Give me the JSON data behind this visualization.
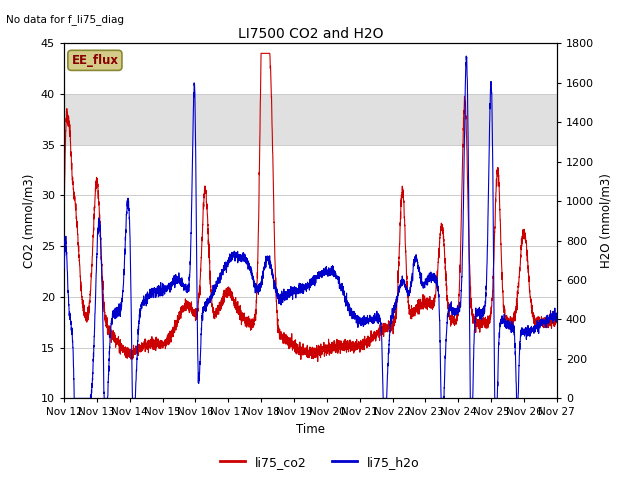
{
  "title": "LI7500 CO2 and H2O",
  "top_left_text": "No data for f_li75_diag",
  "xlabel": "Time",
  "ylabel_left": "CO2 (mmol/m3)",
  "ylabel_right": "H2O (mmol/m3)",
  "ylim_left": [
    10,
    45
  ],
  "ylim_right": [
    0,
    1800
  ],
  "shade_band": [
    35,
    40
  ],
  "xtick_labels": [
    "Nov 12",
    "Nov 13",
    "Nov 14",
    "Nov 15",
    "Nov 16",
    "Nov 17",
    "Nov 18",
    "Nov 19",
    "Nov 20",
    "Nov 21",
    "Nov 22",
    "Nov 23",
    "Nov 24",
    "Nov 25",
    "Nov 26",
    "Nov 27"
  ],
  "color_co2": "#cc0000",
  "color_h2o": "#0000cc",
  "legend_label_co2": "li75_co2",
  "legend_label_h2o": "li75_h2o",
  "ee_flux_box_facecolor": "#d4cc88",
  "ee_flux_box_edgecolor": "#888833",
  "ee_flux_text_color": "#880000",
  "background_color": "#ffffff",
  "grid_color": "#cccccc",
  "shade_color": "#e0e0e0",
  "yticks_left": [
    10,
    15,
    20,
    25,
    30,
    35,
    40,
    45
  ],
  "yticks_right": [
    0,
    200,
    400,
    600,
    800,
    1000,
    1200,
    1400,
    1600,
    1800
  ],
  "figsize": [
    6.4,
    4.8
  ],
  "dpi": 100
}
